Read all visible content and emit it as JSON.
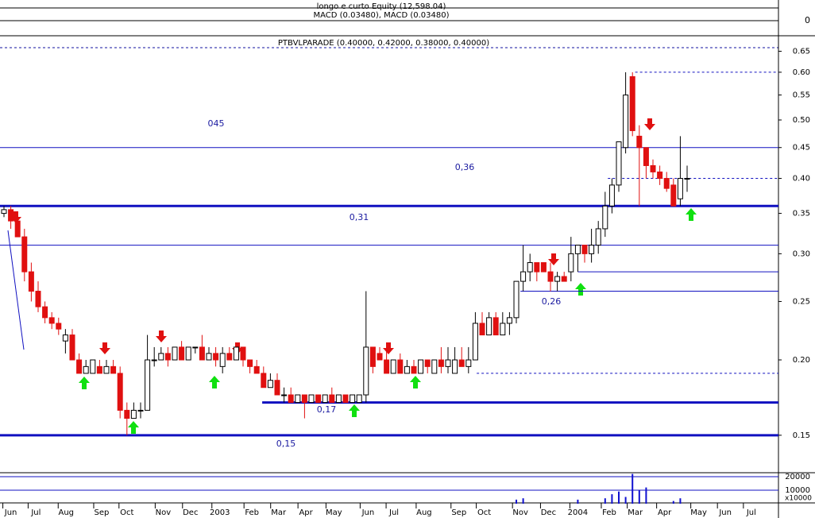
{
  "chart_data": {
    "type": "candlestick",
    "title": "PTBVLPARADE (0.40000, 0.42000, 0.38000, 0.40000)",
    "indicator_labels": [
      "longo e curto Equity (12,598.04)",
      "MACD (0.03480), MACD (0.03480)"
    ],
    "macd_yticks": [
      0
    ],
    "log_scale": true,
    "up_color": "#ffffff",
    "down_color": "#e01010",
    "xlim": [
      -0.58,
      113.37
    ],
    "xticks": [
      {
        "value": 1.0,
        "label": "Jun"
      },
      {
        "value": 4.7,
        "label": "Jul"
      },
      {
        "value": 9.1,
        "label": "Aug"
      },
      {
        "value": 14.3,
        "label": "Sep"
      },
      {
        "value": 18.0,
        "label": "Oct"
      },
      {
        "value": 23.3,
        "label": "Nov"
      },
      {
        "value": 27.3,
        "label": "Dec"
      },
      {
        "value": 31.6,
        "label": "2003"
      },
      {
        "value": 36.3,
        "label": "Feb"
      },
      {
        "value": 40.2,
        "label": "Mar"
      },
      {
        "value": 44.2,
        "label": "Apr"
      },
      {
        "value": 48.3,
        "label": "May"
      },
      {
        "value": 53.3,
        "label": "Jun"
      },
      {
        "value": 57.1,
        "label": "Jul"
      },
      {
        "value": 61.5,
        "label": "Aug"
      },
      {
        "value": 66.6,
        "label": "Sep"
      },
      {
        "value": 70.3,
        "label": "Oct"
      },
      {
        "value": 75.6,
        "label": "Nov"
      },
      {
        "value": 79.7,
        "label": "Dec"
      },
      {
        "value": 84.0,
        "label": "2004"
      },
      {
        "value": 88.6,
        "label": "Feb"
      },
      {
        "value": 92.4,
        "label": "Mar"
      },
      {
        "value": 96.7,
        "label": "Apr"
      },
      {
        "value": 101.7,
        "label": "May"
      },
      {
        "value": 105.6,
        "label": "Jun"
      },
      {
        "value": 109.4,
        "label": "Jul"
      }
    ],
    "ylim": [
      0.13,
      0.655
    ],
    "yticks": [
      0.15,
      {
        "value": 0.2,
        "label": "0.20"
      },
      0.25,
      {
        "value": 0.3,
        "label": "0.30"
      },
      0.35,
      {
        "value": 0.4,
        "label": "0.40"
      },
      0.45,
      {
        "value": 0.5,
        "label": "0.50"
      },
      0.55,
      {
        "value": 0.6,
        "label": "0.60"
      },
      0.65
    ],
    "levels": [
      {
        "value": 0.36,
        "style": "thick",
        "from": -0.58
      },
      {
        "value": 0.15,
        "style": "thick",
        "from": -0.58
      },
      {
        "value": 0.17,
        "style": "thick",
        "from": 37.8
      },
      {
        "value": 0.45,
        "style": "thin",
        "from": -0.58
      },
      {
        "value": 0.31,
        "style": "thin",
        "from": -0.58
      },
      {
        "value": 0.28,
        "style": "thin",
        "from": 84
      },
      {
        "value": 0.26,
        "style": "thin",
        "from": 75.6
      },
      {
        "value": 0.6,
        "style": "dashed",
        "from": 92.4
      },
      {
        "value": 0.4,
        "style": "dashed",
        "from": 88.4
      },
      {
        "value": 0.19,
        "style": "dashed",
        "from": 69.2
      }
    ],
    "annotations": [
      "045",
      "0,36",
      "0,31",
      "0,26",
      "0,17",
      "0,15"
    ],
    "ohlc": [
      [
        0.35,
        0.36,
        0.345,
        0.355
      ],
      [
        0.355,
        0.36,
        0.33,
        0.34
      ],
      [
        0.34,
        0.35,
        0.32,
        0.32
      ],
      [
        0.32,
        0.33,
        0.27,
        0.28
      ],
      [
        0.28,
        0.29,
        0.25,
        0.26
      ],
      [
        0.26,
        0.27,
        0.24,
        0.245
      ],
      [
        0.245,
        0.25,
        0.23,
        0.235
      ],
      [
        0.235,
        0.24,
        0.225,
        0.23
      ],
      [
        0.23,
        0.235,
        0.22,
        0.225
      ],
      [
        0.215,
        0.225,
        0.205,
        0.22
      ],
      [
        0.22,
        0.225,
        0.2,
        0.2
      ],
      [
        0.2,
        0.205,
        0.19,
        0.19
      ],
      [
        0.19,
        0.2,
        0.19,
        0.195
      ],
      [
        0.19,
        0.2,
        0.19,
        0.2
      ],
      [
        0.195,
        0.2,
        0.19,
        0.19
      ],
      [
        0.19,
        0.2,
        0.19,
        0.195
      ],
      [
        0.195,
        0.2,
        0.19,
        0.19
      ],
      [
        0.19,
        0.195,
        0.16,
        0.165
      ],
      [
        0.165,
        0.17,
        0.15,
        0.16
      ],
      [
        0.16,
        0.17,
        0.16,
        0.165
      ],
      [
        0.165,
        0.17,
        0.16,
        0.165
      ],
      [
        0.165,
        0.22,
        0.165,
        0.2
      ],
      [
        0.2,
        0.21,
        0.195,
        0.2
      ],
      [
        0.2,
        0.21,
        0.2,
        0.205
      ],
      [
        0.205,
        0.21,
        0.195,
        0.2
      ],
      [
        0.2,
        0.21,
        0.2,
        0.21
      ],
      [
        0.21,
        0.215,
        0.2,
        0.2
      ],
      [
        0.2,
        0.21,
        0.2,
        0.21
      ],
      [
        0.21,
        0.21,
        0.205,
        0.21
      ],
      [
        0.21,
        0.22,
        0.2,
        0.2
      ],
      [
        0.2,
        0.21,
        0.2,
        0.205
      ],
      [
        0.205,
        0.21,
        0.195,
        0.2
      ],
      [
        0.195,
        0.21,
        0.19,
        0.205
      ],
      [
        0.205,
        0.21,
        0.2,
        0.2
      ],
      [
        0.2,
        0.21,
        0.2,
        0.21
      ],
      [
        0.21,
        0.21,
        0.195,
        0.2
      ],
      [
        0.2,
        0.2,
        0.19,
        0.195
      ],
      [
        0.195,
        0.2,
        0.19,
        0.19
      ],
      [
        0.19,
        0.195,
        0.18,
        0.18
      ],
      [
        0.18,
        0.19,
        0.18,
        0.185
      ],
      [
        0.185,
        0.19,
        0.175,
        0.175
      ],
      [
        0.175,
        0.18,
        0.17,
        0.175
      ],
      [
        0.175,
        0.18,
        0.17,
        0.17
      ],
      [
        0.17,
        0.175,
        0.17,
        0.175
      ],
      [
        0.175,
        0.175,
        0.16,
        0.17
      ],
      [
        0.17,
        0.175,
        0.17,
        0.175
      ],
      [
        0.175,
        0.175,
        0.17,
        0.17
      ],
      [
        0.17,
        0.175,
        0.17,
        0.175
      ],
      [
        0.175,
        0.18,
        0.17,
        0.17
      ],
      [
        0.17,
        0.175,
        0.17,
        0.175
      ],
      [
        0.175,
        0.175,
        0.17,
        0.17
      ],
      [
        0.17,
        0.175,
        0.17,
        0.175
      ],
      [
        0.17,
        0.175,
        0.17,
        0.175
      ],
      [
        0.175,
        0.26,
        0.17,
        0.21
      ],
      [
        0.21,
        0.21,
        0.19,
        0.195
      ],
      [
        0.205,
        0.21,
        0.2,
        0.2
      ],
      [
        0.2,
        0.21,
        0.19,
        0.19
      ],
      [
        0.19,
        0.2,
        0.19,
        0.2
      ],
      [
        0.2,
        0.205,
        0.19,
        0.19
      ],
      [
        0.19,
        0.2,
        0.19,
        0.195
      ],
      [
        0.195,
        0.2,
        0.19,
        0.19
      ],
      [
        0.19,
        0.2,
        0.19,
        0.2
      ],
      [
        0.2,
        0.2,
        0.19,
        0.195
      ],
      [
        0.19,
        0.2,
        0.19,
        0.2
      ],
      [
        0.2,
        0.21,
        0.19,
        0.195
      ],
      [
        0.195,
        0.21,
        0.19,
        0.2
      ],
      [
        0.19,
        0.21,
        0.19,
        0.2
      ],
      [
        0.2,
        0.21,
        0.195,
        0.195
      ],
      [
        0.195,
        0.21,
        0.19,
        0.2
      ],
      [
        0.2,
        0.24,
        0.2,
        0.23
      ],
      [
        0.23,
        0.24,
        0.22,
        0.22
      ],
      [
        0.22,
        0.24,
        0.22,
        0.235
      ],
      [
        0.235,
        0.24,
        0.22,
        0.22
      ],
      [
        0.22,
        0.24,
        0.22,
        0.23
      ],
      [
        0.23,
        0.24,
        0.22,
        0.235
      ],
      [
        0.235,
        0.27,
        0.23,
        0.27
      ],
      [
        0.27,
        0.31,
        0.26,
        0.28
      ],
      [
        0.28,
        0.3,
        0.27,
        0.29
      ],
      [
        0.29,
        0.29,
        0.27,
        0.28
      ],
      [
        0.29,
        0.29,
        0.28,
        0.28
      ],
      [
        0.28,
        0.29,
        0.26,
        0.27
      ],
      [
        0.27,
        0.28,
        0.26,
        0.275
      ],
      [
        0.275,
        0.28,
        0.27,
        0.27
      ],
      [
        0.28,
        0.32,
        0.27,
        0.3
      ],
      [
        0.3,
        0.31,
        0.28,
        0.31
      ],
      [
        0.31,
        0.31,
        0.29,
        0.3
      ],
      [
        0.3,
        0.33,
        0.29,
        0.31
      ],
      [
        0.31,
        0.34,
        0.3,
        0.33
      ],
      [
        0.33,
        0.38,
        0.32,
        0.36
      ],
      [
        0.36,
        0.4,
        0.35,
        0.39
      ],
      [
        0.39,
        0.46,
        0.38,
        0.46
      ],
      [
        0.45,
        0.6,
        0.44,
        0.55
      ],
      [
        0.59,
        0.6,
        0.47,
        0.48
      ],
      [
        0.47,
        0.49,
        0.36,
        0.45
      ],
      [
        0.45,
        0.45,
        0.4,
        0.42
      ],
      [
        0.42,
        0.43,
        0.4,
        0.41
      ],
      [
        0.41,
        0.42,
        0.39,
        0.4
      ],
      [
        0.4,
        0.41,
        0.38,
        0.385
      ],
      [
        0.39,
        0.4,
        0.36,
        0.36
      ],
      [
        0.37,
        0.47,
        0.36,
        0.4
      ],
      [
        0.4,
        0.42,
        0.38,
        0.4
      ]
    ],
    "volume_label": "x10000",
    "volume_ylim": [
      0,
      22900
    ],
    "volume_yticks": [
      20000,
      10000
    ],
    "volume_color": "#1010d0",
    "volume": [
      0,
      0,
      0,
      0,
      0,
      0,
      0,
      0,
      0,
      0,
      0,
      0,
      0,
      0,
      0,
      0,
      0,
      0,
      0,
      0,
      0,
      0,
      0,
      0,
      0,
      0,
      0,
      0,
      0,
      0,
      0,
      0,
      0,
      0,
      0,
      0,
      0,
      0,
      0,
      0,
      0,
      0,
      0,
      0,
      0,
      0,
      0,
      0,
      0,
      0,
      0,
      0,
      0,
      0,
      0,
      0,
      0,
      0,
      0,
      0,
      0,
      0,
      0,
      0,
      0,
      0,
      0,
      0,
      0,
      0,
      0,
      0,
      0,
      0,
      0,
      3000,
      4000,
      0,
      0,
      0,
      0,
      0,
      0,
      0,
      3000,
      0,
      0,
      0,
      4000,
      7000,
      9000,
      5000,
      22000,
      10000,
      12000,
      0,
      0,
      0,
      2000,
      4000,
      0
    ]
  }
}
